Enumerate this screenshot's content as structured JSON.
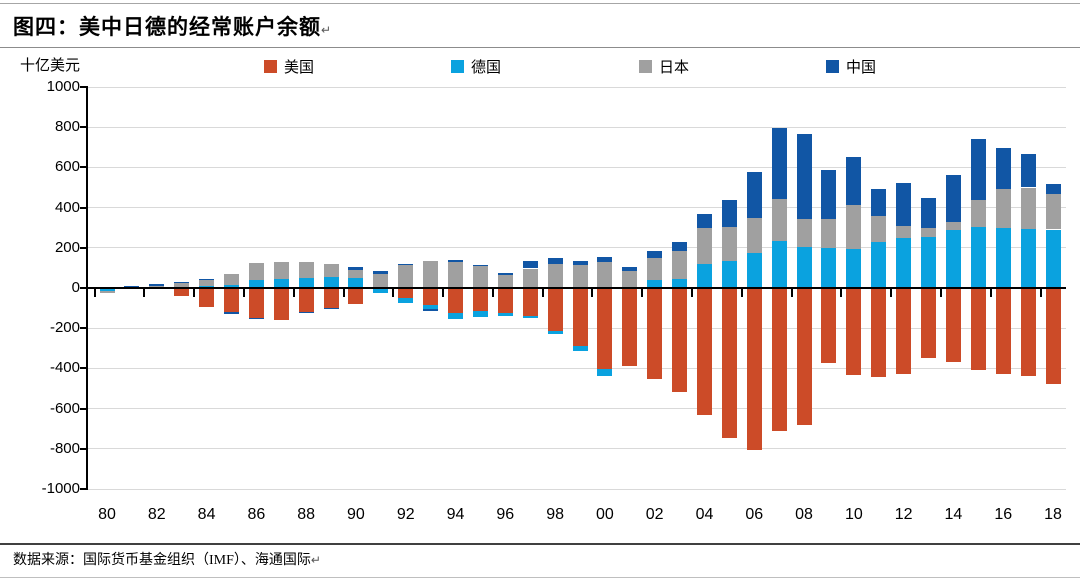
{
  "header": {
    "title": "图四：美中日德的经常账户余额",
    "paragraph_mark": "↵"
  },
  "footer": {
    "source": "数据来源：国际货币基金组织（IMF）、海通国际",
    "paragraph_mark": "↵"
  },
  "chart_data": {
    "type": "bar",
    "stacked": true,
    "title": "图四：美中日德的经常账户余额",
    "ylabel": "十亿美元",
    "ylim": [
      -1000,
      1000
    ],
    "ytick_interval": 200,
    "grid": true,
    "legend_position": "top",
    "axis_color": "#000000",
    "gridline_color": "#d9d9d9",
    "years": [
      1980,
      1981,
      1982,
      1983,
      1984,
      1985,
      1986,
      1987,
      1988,
      1989,
      1990,
      1991,
      1992,
      1993,
      1994,
      1995,
      1996,
      1997,
      1998,
      1999,
      2000,
      2001,
      2002,
      2003,
      2004,
      2005,
      2006,
      2007,
      2008,
      2009,
      2010,
      2011,
      2012,
      2013,
      2014,
      2015,
      2016,
      2017,
      2018
    ],
    "x_tick_labels": [
      "80",
      "82",
      "84",
      "86",
      "88",
      "90",
      "92",
      "94",
      "96",
      "98",
      "00",
      "02",
      "04",
      "06",
      "08",
      "10",
      "12",
      "14",
      "16",
      "18"
    ],
    "series": [
      {
        "id": "us",
        "name": "美国",
        "color": "#cc4b28",
        "values": [
          2,
          5,
          -6,
          -39,
          -94,
          -118,
          -147,
          -161,
          -121,
          -99,
          -79,
          3,
          -52,
          -85,
          -122,
          -114,
          -125,
          -141,
          -215,
          -288,
          -404,
          -390,
          -451,
          -519,
          -632,
          -745,
          -806,
          -711,
          -681,
          -373,
          -431,
          -445,
          -426,
          -349,
          -370,
          -408,
          -428,
          -440,
          -478
        ]
      },
      {
        "id": "germany",
        "name": "德国",
        "color": "#0aa2df",
        "values": [
          -14,
          -2,
          5,
          5,
          10,
          17,
          40,
          46,
          50,
          57,
          48,
          -23,
          -22,
          -19,
          -30,
          -29,
          -14,
          -10,
          -16,
          -27,
          -33,
          0,
          41,
          46,
          118,
          134,
          172,
          233,
          202,
          199,
          192,
          229,
          248,
          252,
          289,
          301,
          297,
          296,
          291
        ]
      },
      {
        "id": "japan",
        "name": "日本",
        "color": "#a0a0a0",
        "values": [
          -11,
          5,
          7,
          21,
          35,
          51,
          86,
          84,
          79,
          63,
          44,
          68,
          112,
          132,
          131,
          111,
          66,
          97,
          119,
          115,
          131,
          86,
          109,
          139,
          182,
          170,
          175,
          212,
          143,
          145,
          221,
          130,
          60,
          46,
          37,
          136,
          197,
          204,
          177
        ]
      },
      {
        "id": "china",
        "name": "中国",
        "color": "#1156a5",
        "values": [
          0,
          2,
          6,
          4,
          2,
          -11,
          -7,
          0,
          -4,
          -4,
          12,
          13,
          6,
          -12,
          8,
          2,
          7,
          37,
          32,
          21,
          21,
          17,
          35,
          46,
          69,
          132,
          232,
          353,
          421,
          243,
          238,
          136,
          215,
          148,
          236,
          304,
          202,
          165,
          49
        ]
      }
    ]
  }
}
